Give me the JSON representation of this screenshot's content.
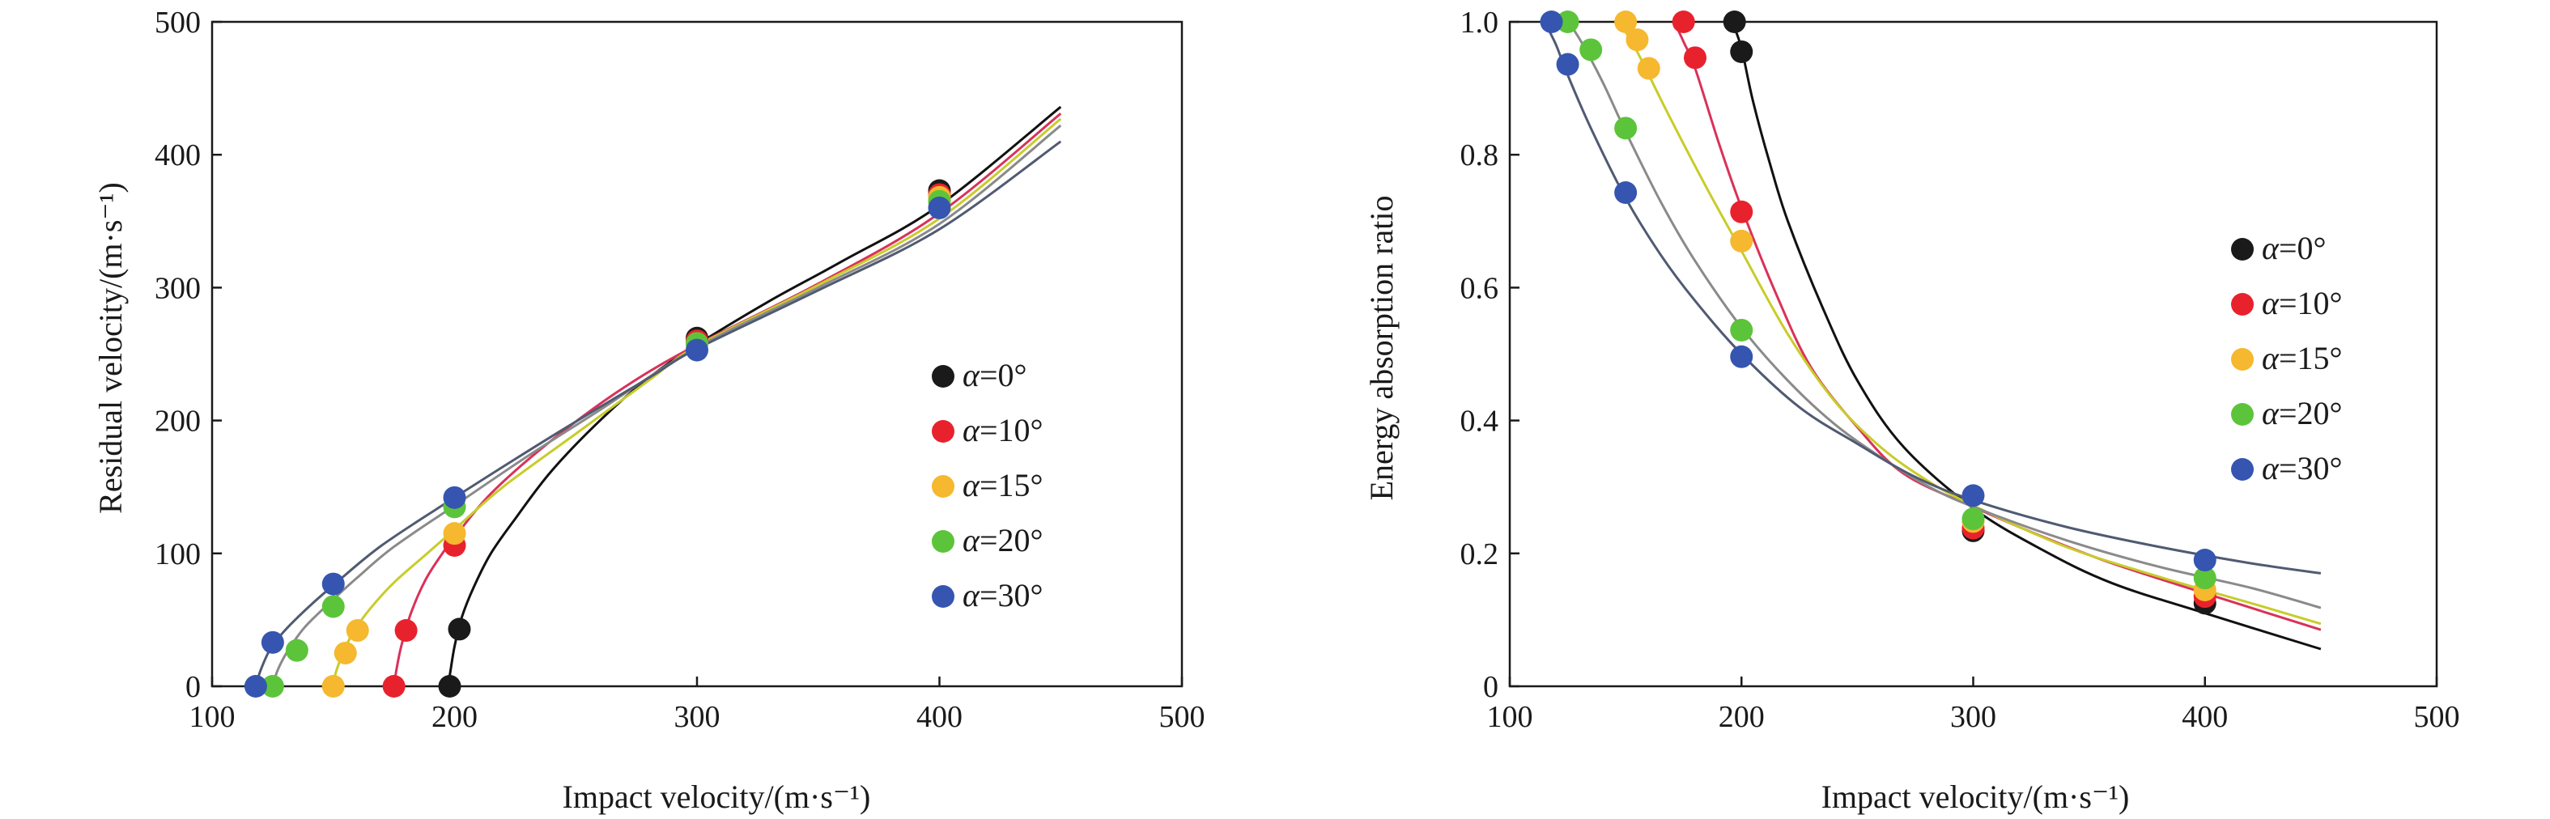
{
  "colors": {
    "a0": "#1a1a1a",
    "a10": "#e8222d",
    "a15": "#f5b82e",
    "a20": "#5cc43a",
    "a30": "#3555b0",
    "a0_line": "#111111",
    "a10_line": "#d9325a",
    "a15_line": "#c8cc2a",
    "a20_line": "#8a8a8a",
    "a30_line": "#505a72"
  },
  "chart_data": [
    {
      "type": "scatter",
      "xlabel": "Impact velocity/(m·s⁻¹)",
      "ylabel": "Residual velocity/(m·s⁻¹)",
      "xlim": [
        100,
        500
      ],
      "ylim": [
        0,
        500
      ],
      "xticks": [
        "100",
        "200",
        "300",
        "400",
        "500"
      ],
      "yticks": [
        "0",
        "100",
        "200",
        "300",
        "400",
        "500"
      ],
      "legend_position": "right",
      "series": [
        {
          "name_symbol": "α",
          "name_value": "=0°",
          "points": [
            [
              198,
              0
            ],
            [
              202,
              43
            ],
            [
              300,
              262
            ],
            [
              400,
              373
            ]
          ],
          "fit": [
            [
              197,
              0
            ],
            [
              198,
              8
            ],
            [
              200,
              30
            ],
            [
              203,
              52
            ],
            [
              208,
              75
            ],
            [
              215,
              100
            ],
            [
              225,
              126
            ],
            [
              240,
              162
            ],
            [
              260,
              200
            ],
            [
              280,
              232
            ],
            [
              300,
              257
            ],
            [
              330,
              290
            ],
            [
              360,
              320
            ],
            [
              400,
              362
            ],
            [
              450,
              436
            ]
          ]
        },
        {
          "name_symbol": "α",
          "name_value": "=10°",
          "points": [
            [
              175,
              0
            ],
            [
              180,
              42
            ],
            [
              200,
              106
            ],
            [
              300,
              260
            ],
            [
              400,
              370
            ]
          ],
          "fit": [
            [
              175,
              0
            ],
            [
              176,
              12
            ],
            [
              178,
              30
            ],
            [
              182,
              55
            ],
            [
              188,
              80
            ],
            [
              195,
              100
            ],
            [
              200,
              112
            ],
            [
              215,
              145
            ],
            [
              240,
              185
            ],
            [
              270,
              225
            ],
            [
              300,
              257
            ],
            [
              350,
              303
            ],
            [
              400,
              356
            ],
            [
              450,
              431
            ]
          ]
        },
        {
          "name_symbol": "α",
          "name_value": "=15°",
          "points": [
            [
              150,
              0
            ],
            [
              155,
              25
            ],
            [
              160,
              42
            ],
            [
              200,
              115
            ],
            [
              300,
              258
            ],
            [
              400,
              368
            ]
          ],
          "fit": [
            [
              150,
              0
            ],
            [
              151,
              10
            ],
            [
              154,
              25
            ],
            [
              158,
              40
            ],
            [
              165,
              58
            ],
            [
              175,
              78
            ],
            [
              190,
              102
            ],
            [
              200,
              118
            ],
            [
              220,
              150
            ],
            [
              250,
              190
            ],
            [
              280,
              230
            ],
            [
              300,
              256
            ],
            [
              350,
              302
            ],
            [
              400,
              352
            ],
            [
              450,
              427
            ]
          ]
        },
        {
          "name_symbol": "α",
          "name_value": "=20°",
          "points": [
            [
              125,
              0
            ],
            [
              135,
              27
            ],
            [
              150,
              60
            ],
            [
              200,
              135
            ],
            [
              300,
              258
            ],
            [
              400,
              365
            ]
          ],
          "fit": [
            [
              125,
              0
            ],
            [
              127,
              12
            ],
            [
              131,
              26
            ],
            [
              138,
              44
            ],
            [
              148,
              62
            ],
            [
              160,
              82
            ],
            [
              175,
              105
            ],
            [
              200,
              136
            ],
            [
              230,
              173
            ],
            [
              260,
              208
            ],
            [
              300,
              255
            ],
            [
              350,
              300
            ],
            [
              400,
              348
            ],
            [
              450,
              422
            ]
          ]
        },
        {
          "name_symbol": "α",
          "name_value": "=30°",
          "points": [
            [
              118,
              0
            ],
            [
              125,
              33
            ],
            [
              150,
              77
            ],
            [
              200,
              142
            ],
            [
              300,
              253
            ],
            [
              400,
              360
            ]
          ],
          "fit": [
            [
              118,
              0
            ],
            [
              120,
              12
            ],
            [
              124,
              28
            ],
            [
              130,
              42
            ],
            [
              140,
              60
            ],
            [
              150,
              76
            ],
            [
              170,
              106
            ],
            [
              200,
              142
            ],
            [
              240,
              188
            ],
            [
              280,
              232
            ],
            [
              300,
              254
            ],
            [
              350,
              298
            ],
            [
              400,
              344
            ],
            [
              450,
              410
            ]
          ]
        }
      ]
    },
    {
      "type": "scatter",
      "xlabel": "Impact velocity/(m·s⁻¹)",
      "ylabel": "Energy absorption ratio",
      "xlim": [
        100,
        500
      ],
      "ylim": [
        0,
        1.0
      ],
      "xticks": [
        "100",
        "200",
        "300",
        "400",
        "500"
      ],
      "yticks": [
        "0",
        "0.2",
        "0.4",
        "0.6",
        "0.8",
        "1.0"
      ],
      "legend_position": "right",
      "series": [
        {
          "name_symbol": "α",
          "name_value": "=0°",
          "points": [
            [
              197,
              1.0
            ],
            [
              200,
              0.955
            ],
            [
              300,
              0.234
            ],
            [
              400,
              0.125
            ]
          ],
          "fit": [
            [
              196,
              1.0
            ],
            [
              200,
              0.96
            ],
            [
              205,
              0.88
            ],
            [
              212,
              0.79
            ],
            [
              220,
              0.7
            ],
            [
              235,
              0.57
            ],
            [
              250,
              0.46
            ],
            [
              270,
              0.36
            ],
            [
              300,
              0.268
            ],
            [
              330,
              0.205
            ],
            [
              360,
              0.155
            ],
            [
              400,
              0.11
            ],
            [
              450,
              0.056
            ]
          ]
        },
        {
          "name_symbol": "α",
          "name_value": "=10°",
          "points": [
            [
              175,
              1.0
            ],
            [
              180,
              0.946
            ],
            [
              200,
              0.714
            ],
            [
              300,
              0.238
            ],
            [
              400,
              0.135
            ]
          ],
          "fit": [
            [
              171,
              1.0
            ],
            [
              175,
              0.97
            ],
            [
              180,
              0.93
            ],
            [
              190,
              0.82
            ],
            [
              200,
              0.72
            ],
            [
              215,
              0.59
            ],
            [
              230,
              0.48
            ],
            [
              250,
              0.39
            ],
            [
              270,
              0.32
            ],
            [
              300,
              0.27
            ],
            [
              330,
              0.225
            ],
            [
              360,
              0.185
            ],
            [
              400,
              0.14
            ],
            [
              450,
              0.085
            ]
          ]
        },
        {
          "name_symbol": "α",
          "name_value": "=15°",
          "points": [
            [
              150,
              1.0
            ],
            [
              155,
              0.973
            ],
            [
              160,
              0.93
            ],
            [
              200,
              0.67
            ],
            [
              300,
              0.248
            ],
            [
              400,
              0.145
            ]
          ],
          "fit": [
            [
              147,
              1.0
            ],
            [
              150,
              0.985
            ],
            [
              155,
              0.955
            ],
            [
              160,
              0.92
            ],
            [
              170,
              0.85
            ],
            [
              185,
              0.75
            ],
            [
              200,
              0.655
            ],
            [
              220,
              0.53
            ],
            [
              240,
              0.43
            ],
            [
              260,
              0.36
            ],
            [
              280,
              0.31
            ],
            [
              300,
              0.272
            ],
            [
              340,
              0.21
            ],
            [
              380,
              0.165
            ],
            [
              420,
              0.125
            ],
            [
              450,
              0.094
            ]
          ]
        },
        {
          "name_symbol": "α",
          "name_value": "=20°",
          "points": [
            [
              125,
              1.0
            ],
            [
              135,
              0.958
            ],
            [
              150,
              0.84
            ],
            [
              200,
              0.536
            ],
            [
              300,
              0.252
            ],
            [
              400,
              0.163
            ]
          ],
          "fit": [
            [
              125,
              1.0
            ],
            [
              130,
              0.975
            ],
            [
              140,
              0.91
            ],
            [
              150,
              0.835
            ],
            [
              165,
              0.73
            ],
            [
              180,
              0.64
            ],
            [
              200,
              0.54
            ],
            [
              220,
              0.46
            ],
            [
              240,
              0.395
            ],
            [
              260,
              0.345
            ],
            [
              280,
              0.302
            ],
            [
              300,
              0.27
            ],
            [
              340,
              0.22
            ],
            [
              380,
              0.18
            ],
            [
              420,
              0.148
            ],
            [
              450,
              0.118
            ]
          ]
        },
        {
          "name_symbol": "α",
          "name_value": "=30°",
          "points": [
            [
              118,
              1.0
            ],
            [
              125,
              0.936
            ],
            [
              150,
              0.743
            ],
            [
              200,
              0.496
            ],
            [
              300,
              0.287
            ],
            [
              400,
              0.19
            ]
          ],
          "fit": [
            [
              115,
              1.0
            ],
            [
              120,
              0.965
            ],
            [
              125,
              0.92
            ],
            [
              135,
              0.84
            ],
            [
              150,
              0.735
            ],
            [
              165,
              0.65
            ],
            [
              180,
              0.58
            ],
            [
              200,
              0.5
            ],
            [
              225,
              0.42
            ],
            [
              250,
              0.365
            ],
            [
              275,
              0.315
            ],
            [
              300,
              0.28
            ],
            [
              340,
              0.24
            ],
            [
              380,
              0.21
            ],
            [
              420,
              0.185
            ],
            [
              450,
              0.17
            ]
          ]
        }
      ]
    }
  ]
}
